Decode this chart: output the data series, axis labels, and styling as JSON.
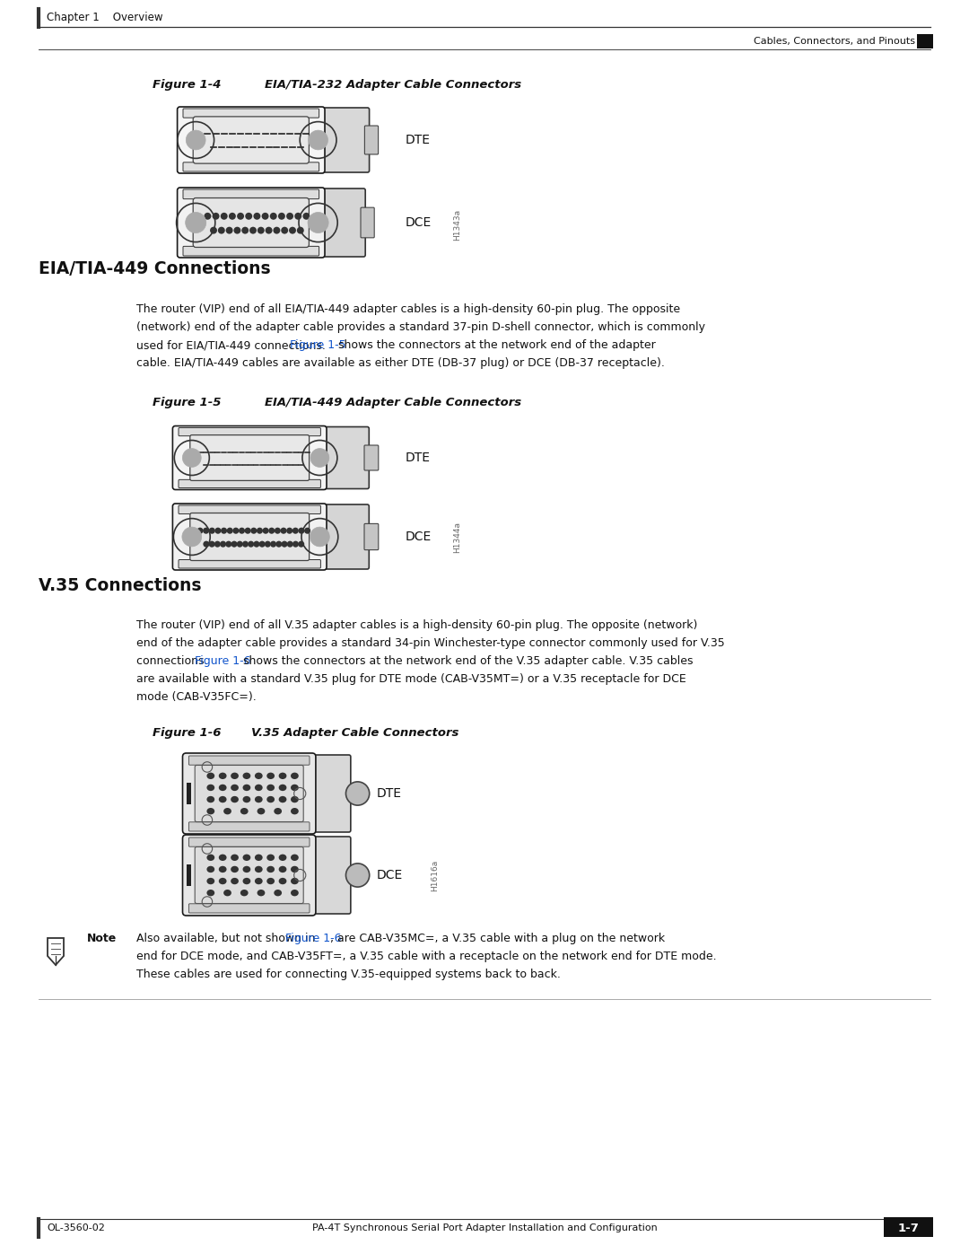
{
  "bg_color": "#ffffff",
  "page_width": 10.8,
  "page_height": 13.97,
  "header_left": "Chapter 1    Overview",
  "header_right": "Cables, Connectors, and Pinouts",
  "footer_left": "OL-3560-02",
  "footer_center": "PA-4T Synchronous Serial Port Adapter Installation and Configuration",
  "footer_page": "1-7",
  "section1_heading": "EIA/TIA-449 Connections",
  "fig4_label": "Figure 1-4",
  "fig4_title": "EIA/TIA-232 Adapter Cable Connectors",
  "fig5_label": "Figure 1-5",
  "fig5_title": "EIA/TIA-449 Adapter Cable Connectors",
  "fig6_label": "Figure 1-6",
  "fig6_title": "V.35 Adapter Cable Connectors",
  "section2_heading": "V.35 Connections",
  "link_color": "#1155cc",
  "body1_line1": "The router (VIP) end of all EIA/TIA-449 adapter cables is a high-density 60-pin plug. The opposite",
  "body1_line2": "(network) end of the adapter cable provides a standard 37-pin D-shell connector, which is commonly",
  "body1_line3a": "used for EIA/TIA-449 connections. ",
  "body1_link": "Figure 1-5",
  "body1_line3c": " shows the connectors at the network end of the adapter",
  "body1_line4": "cable. EIA/TIA-449 cables are available as either DTE (DB-37 plug) or DCE (DB-37 receptacle).",
  "body2_line1": "The router (VIP) end of all V.35 adapter cables is a high-density 60-pin plug. The opposite (network)",
  "body2_line2": "end of the adapter cable provides a standard 34-pin Winchester-type connector commonly used for V.35",
  "body2_line3a": "connections. ",
  "body2_link": "Figure 1-6",
  "body2_line3c": " shows the connectors at the network end of the V.35 adapter cable. V.35 cables",
  "body2_line4": "are available with a standard V.35 plug for DTE mode (CAB-V35MT=) or a V.35 receptacle for DCE",
  "body2_line5": "mode (CAB-V35FC=).",
  "note_label": "Note",
  "note_line1a": "Also available, but not shown in ",
  "note_link": "Figure 1-6",
  "note_line1c": ", are CAB-V35MC=, a V.35 cable with a plug on the network",
  "note_line2": "end for DCE mode, and CAB-V35FT=, a V.35 cable with a receptacle on the network end for DTE mode.",
  "note_line3": "These cables are used for connecting V.35-equipped systems back to back.",
  "watermark1": "H1343a",
  "watermark2": "H1344a",
  "watermark3": "H1616a"
}
